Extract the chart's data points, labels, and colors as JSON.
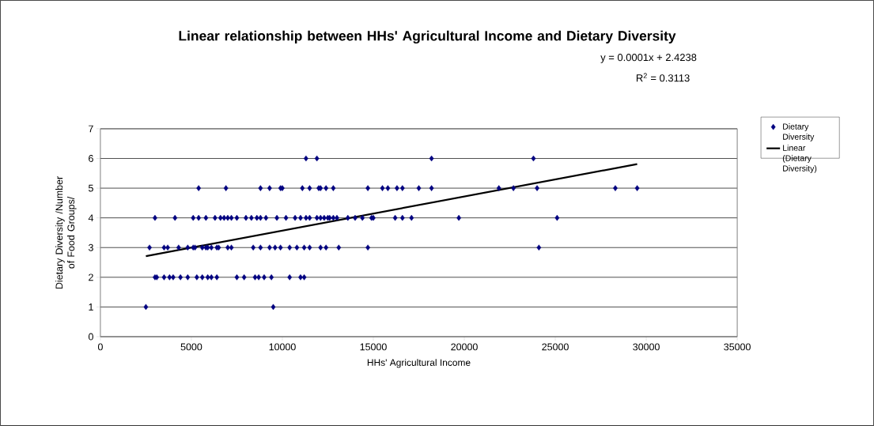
{
  "chart_data": {
    "type": "scatter",
    "title": "Linear relationship between HHs' Agricultural Income and Dietary Diversity",
    "xlabel": "HHs' Agricultural Income",
    "ylabel": "Dietary Diversity /Number of Food Groups/",
    "annotations": [
      "y = 0.0001x + 2.4238",
      "R$^{2}$ = 0.3113"
    ],
    "xlim": [
      0,
      35000
    ],
    "xticks": [
      0,
      5000,
      10000,
      15000,
      20000,
      25000,
      30000,
      35000
    ],
    "ylim": [
      0,
      7
    ],
    "yticks": [
      0,
      1,
      2,
      3,
      4,
      5,
      6,
      7
    ],
    "grid": "y",
    "legend": "right",
    "series": [
      {
        "name": "Dietary Diversity",
        "type": "scatter",
        "marker": "diamond",
        "color": "#000080",
        "x": [
          11300,
          11900,
          18200,
          23800,
          5400,
          6900,
          8800,
          9300,
          9900,
          10000,
          11100,
          11500,
          12000,
          12100,
          12400,
          12800,
          14700,
          15500,
          15800,
          16300,
          16600,
          17500,
          18200,
          21900,
          22700,
          24000,
          28300,
          29500,
          3000,
          4100,
          5100,
          5400,
          5800,
          6300,
          6600,
          6800,
          7000,
          7200,
          7500,
          8000,
          8300,
          8600,
          8800,
          9100,
          9700,
          10200,
          10700,
          11000,
          11300,
          11500,
          11900,
          12100,
          12300,
          12500,
          12600,
          12800,
          13000,
          13600,
          14000,
          14400,
          14900,
          15000,
          16200,
          16600,
          17100,
          19700,
          25100,
          2700,
          3500,
          3700,
          4300,
          4800,
          5100,
          5200,
          5600,
          5800,
          5900,
          6100,
          6400,
          6500,
          7000,
          7200,
          8400,
          8800,
          9300,
          9600,
          9900,
          10400,
          10800,
          11200,
          11500,
          12100,
          12400,
          13100,
          14700,
          24100,
          3000,
          3100,
          3500,
          3800,
          4000,
          4400,
          4800,
          5300,
          5600,
          5900,
          6100,
          6400,
          7500,
          7900,
          8500,
          8700,
          9000,
          9400,
          10400,
          11000,
          11200,
          2500,
          9500
        ],
        "values": [
          6,
          6,
          6,
          6,
          5,
          5,
          5,
          5,
          5,
          5,
          5,
          5,
          5,
          5,
          5,
          5,
          5,
          5,
          5,
          5,
          5,
          5,
          5,
          5,
          5,
          5,
          5,
          5,
          4,
          4,
          4,
          4,
          4,
          4,
          4,
          4,
          4,
          4,
          4,
          4,
          4,
          4,
          4,
          4,
          4,
          4,
          4,
          4,
          4,
          4,
          4,
          4,
          4,
          4,
          4,
          4,
          4,
          4,
          4,
          4,
          4,
          4,
          4,
          4,
          4,
          4,
          4,
          3,
          3,
          3,
          3,
          3,
          3,
          3,
          3,
          3,
          3,
          3,
          3,
          3,
          3,
          3,
          3,
          3,
          3,
          3,
          3,
          3,
          3,
          3,
          3,
          3,
          3,
          3,
          3,
          3,
          2,
          2,
          2,
          2,
          2,
          2,
          2,
          2,
          2,
          2,
          2,
          2,
          2,
          2,
          2,
          2,
          2,
          2,
          2,
          2,
          2,
          1,
          1
        ]
      },
      {
        "name": "Linear (Dietary Diversity)",
        "type": "line",
        "line_style": "solid",
        "color": "#000000",
        "x": [
          2500,
          29500
        ],
        "values": [
          2.71,
          5.81
        ]
      }
    ]
  }
}
